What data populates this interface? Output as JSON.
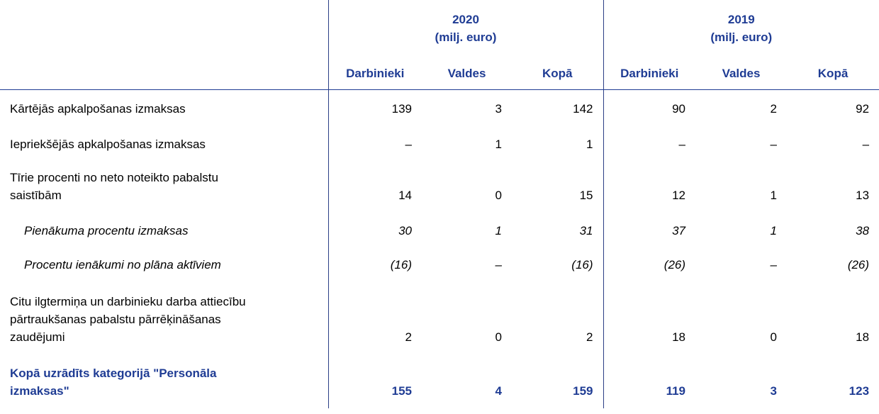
{
  "header": {
    "groups": [
      {
        "year": "2020",
        "unit": "(milj. euro)"
      },
      {
        "year": "2019",
        "unit": "(milj. euro)"
      }
    ],
    "columns": [
      "Darbinieki",
      "Valdes",
      "Kopā",
      "Darbinieki",
      "Valdes",
      "Kopā"
    ]
  },
  "table": {
    "rows": [
      {
        "label": [
          "Kārtējās apkalpošanas izmaksas"
        ],
        "cells": [
          "139",
          "3",
          "142",
          "90",
          "2",
          "92"
        ]
      },
      {
        "label": [
          "Iepriekšējās apkalpošanas izmaksas"
        ],
        "cells": [
          "–",
          "1",
          "1",
          "–",
          "–",
          "–"
        ]
      },
      {
        "label": [
          "Tīrie procenti no neto noteikto pabalstu",
          "saistībām"
        ],
        "cells": [
          "14",
          "0",
          "15",
          "12",
          "1",
          "13"
        ]
      },
      {
        "label": [
          "Pienākuma procentu izmaksas"
        ],
        "cells": [
          "30",
          "1",
          "31",
          "37",
          "1",
          "38"
        ]
      },
      {
        "label": [
          "Procentu ienākumi no plāna aktīviem"
        ],
        "cells": [
          "(16)",
          "–",
          "(16)",
          "(26)",
          "–",
          "(26)"
        ]
      },
      {
        "label": [
          "Citu ilgtermiņa un darbinieku darba attiecību",
          "pārtraukšanas pabalstu pārrēķināšanas",
          "zaudējumi"
        ],
        "cells": [
          "2",
          "0",
          "2",
          "18",
          "0",
          "18"
        ]
      },
      {
        "label": [
          "Kopā uzrādīts kategorijā \"Personāla",
          "izmaksas\""
        ],
        "cells": [
          "155",
          "4",
          "159",
          "119",
          "3",
          "123"
        ]
      }
    ]
  }
}
